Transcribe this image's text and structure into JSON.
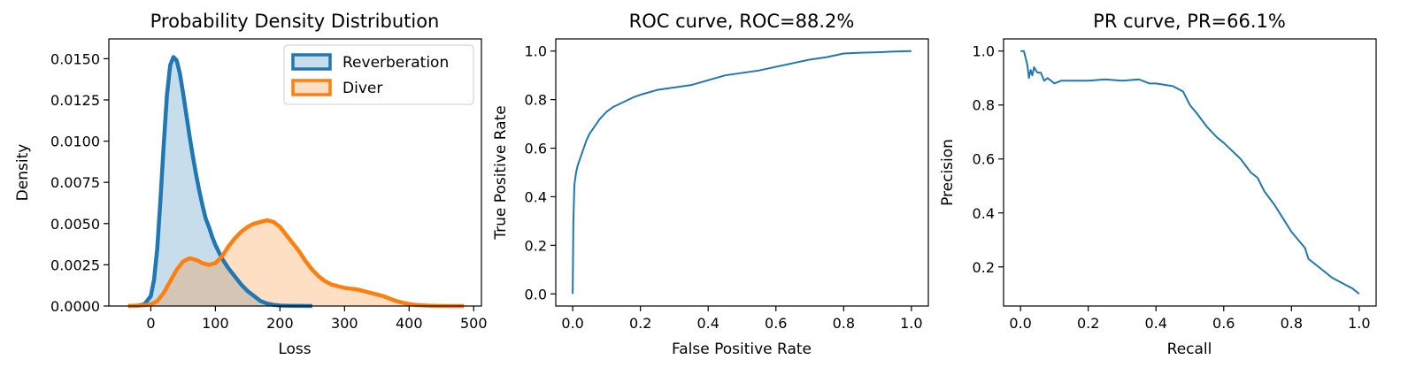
{
  "colors": {
    "reverberation": "#1f77b4",
    "diver": "#ff7f0e",
    "roc_line": "#1f77b4",
    "pr_line": "#1f77b4"
  },
  "chart_data": [
    {
      "type": "area",
      "title": "Probability Density Distribution",
      "xlabel": "Loss",
      "ylabel": "Density",
      "xlim": [
        -65,
        512
      ],
      "ylim": [
        0,
        0.0162
      ],
      "xticks": [
        0,
        100,
        200,
        300,
        400,
        500
      ],
      "xtick_labels": [
        "0",
        "100",
        "200",
        "300",
        "400",
        "500"
      ],
      "yticks": [
        0,
        0.0025,
        0.005,
        0.0075,
        0.01,
        0.0125,
        0.015
      ],
      "ytick_labels": [
        "0.0000",
        "0.0025",
        "0.0050",
        "0.0075",
        "0.0100",
        "0.0125",
        "0.0150"
      ],
      "legend_position": "top-right",
      "grid": false,
      "series": [
        {
          "name": "Reverberation",
          "x": [
            -35,
            -20,
            -10,
            0,
            5,
            10,
            15,
            20,
            25,
            30,
            35,
            40,
            45,
            50,
            55,
            60,
            65,
            70,
            75,
            80,
            85,
            90,
            95,
            100,
            110,
            120,
            130,
            140,
            150,
            160,
            170,
            180,
            190,
            200,
            215,
            230,
            250
          ],
          "y": [
            0,
            2e-05,
            0.0001,
            0.0006,
            0.0016,
            0.0035,
            0.0065,
            0.0098,
            0.0128,
            0.0146,
            0.0151,
            0.0149,
            0.0141,
            0.0129,
            0.0116,
            0.0103,
            0.0091,
            0.008,
            0.007,
            0.0061,
            0.0053,
            0.0048,
            0.0042,
            0.0037,
            0.0029,
            0.0023,
            0.0018,
            0.0013,
            0.0009,
            0.0006,
            0.0003,
            0.00015,
            7e-05,
            3e-05,
            1e-05,
            4e-06,
            0
          ]
        },
        {
          "name": "Diver",
          "x": [
            -35,
            -10,
            0,
            10,
            20,
            30,
            40,
            50,
            60,
            70,
            80,
            90,
            100,
            110,
            120,
            130,
            140,
            150,
            160,
            170,
            180,
            190,
            200,
            210,
            220,
            230,
            240,
            250,
            260,
            270,
            280,
            290,
            300,
            310,
            320,
            330,
            340,
            350,
            360,
            370,
            380,
            390,
            400,
            410,
            420,
            430,
            440,
            460,
            485
          ],
          "y": [
            0,
            5e-05,
            0.0001,
            0.0003,
            0.0008,
            0.0015,
            0.0022,
            0.0027,
            0.0029,
            0.0028,
            0.0026,
            0.0025,
            0.0026,
            0.003,
            0.0036,
            0.0041,
            0.0045,
            0.0048,
            0.005,
            0.0051,
            0.0052,
            0.0051,
            0.0048,
            0.0043,
            0.0038,
            0.0033,
            0.0027,
            0.0022,
            0.0018,
            0.0015,
            0.0013,
            0.0012,
            0.0011,
            0.00105,
            0.001,
            0.0009,
            0.0008,
            0.0007,
            0.0006,
            0.00045,
            0.0003,
            0.0002,
            0.00012,
            7e-05,
            4e-05,
            2e-05,
            1e-05,
            3e-06,
            0
          ]
        }
      ]
    },
    {
      "type": "line",
      "title": "ROC curve, ROC=88.2%",
      "xlabel": "False Positive Rate",
      "ylabel": "True Positive Rate",
      "xlim": [
        -0.05,
        1.05
      ],
      "ylim": [
        -0.05,
        1.05
      ],
      "xticks": [
        0,
        0.2,
        0.4,
        0.6,
        0.8,
        1.0
      ],
      "xtick_labels": [
        "0.0",
        "0.2",
        "0.4",
        "0.6",
        "0.8",
        "1.0"
      ],
      "yticks": [
        0,
        0.2,
        0.4,
        0.6,
        0.8,
        1.0
      ],
      "ytick_labels": [
        "0.0",
        "0.2",
        "0.4",
        "0.6",
        "0.8",
        "1.0"
      ],
      "grid": false,
      "series": [
        {
          "x": [
            0,
            0.002,
            0.005,
            0.01,
            0.015,
            0.02,
            0.03,
            0.04,
            0.05,
            0.06,
            0.07,
            0.08,
            0.1,
            0.12,
            0.15,
            0.18,
            0.2,
            0.25,
            0.3,
            0.35,
            0.4,
            0.45,
            0.5,
            0.55,
            0.6,
            0.65,
            0.7,
            0.75,
            0.8,
            0.85,
            0.9,
            0.95,
            1.0
          ],
          "y": [
            0,
            0.3,
            0.45,
            0.5,
            0.53,
            0.55,
            0.59,
            0.63,
            0.66,
            0.68,
            0.7,
            0.72,
            0.75,
            0.77,
            0.79,
            0.81,
            0.82,
            0.84,
            0.85,
            0.86,
            0.88,
            0.9,
            0.91,
            0.92,
            0.935,
            0.95,
            0.965,
            0.975,
            0.99,
            0.993,
            0.995,
            0.998,
            1.0
          ]
        }
      ]
    },
    {
      "type": "line",
      "title": "PR curve, PR=66.1%",
      "xlabel": "Recall",
      "ylabel": "Precision",
      "xlim": [
        -0.05,
        1.05
      ],
      "ylim": [
        0.055,
        1.045
      ],
      "xticks": [
        0,
        0.2,
        0.4,
        0.6,
        0.8,
        1.0
      ],
      "xtick_labels": [
        "0.0",
        "0.2",
        "0.4",
        "0.6",
        "0.8",
        "1.0"
      ],
      "yticks": [
        0.2,
        0.4,
        0.6,
        0.8,
        1.0
      ],
      "ytick_labels": [
        "0.2",
        "0.4",
        "0.6",
        "0.8",
        "1.0"
      ],
      "grid": false,
      "series": [
        {
          "x": [
            0,
            0.01,
            0.02,
            0.025,
            0.03,
            0.035,
            0.04,
            0.05,
            0.06,
            0.07,
            0.08,
            0.1,
            0.12,
            0.15,
            0.2,
            0.25,
            0.3,
            0.35,
            0.38,
            0.4,
            0.45,
            0.48,
            0.5,
            0.52,
            0.55,
            0.58,
            0.6,
            0.65,
            0.68,
            0.7,
            0.72,
            0.75,
            0.78,
            0.8,
            0.82,
            0.84,
            0.85,
            0.88,
            0.9,
            0.92,
            0.95,
            0.98,
            1.0
          ],
          "y": [
            1.0,
            1.0,
            0.95,
            0.9,
            0.93,
            0.91,
            0.94,
            0.92,
            0.92,
            0.89,
            0.9,
            0.88,
            0.89,
            0.89,
            0.89,
            0.895,
            0.89,
            0.895,
            0.88,
            0.88,
            0.87,
            0.85,
            0.8,
            0.77,
            0.72,
            0.68,
            0.66,
            0.6,
            0.55,
            0.53,
            0.48,
            0.43,
            0.37,
            0.33,
            0.3,
            0.27,
            0.23,
            0.2,
            0.18,
            0.16,
            0.14,
            0.12,
            0.1
          ]
        }
      ]
    }
  ]
}
